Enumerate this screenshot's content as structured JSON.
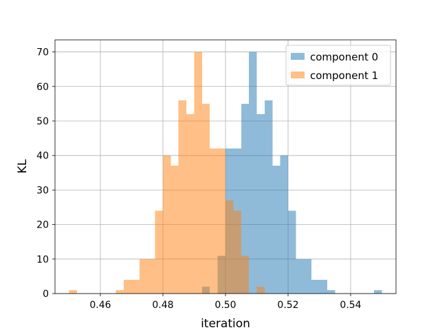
{
  "chart_data": {
    "type": "histogram",
    "xlabel": "iteration",
    "ylabel": "KL",
    "xlim": [
      0.4455,
      0.5545
    ],
    "ylim": [
      0,
      73.5
    ],
    "bin_width": 0.0025,
    "grid": true,
    "legend_position": "top-right",
    "x_ticks": [
      0.46,
      0.48,
      0.5,
      0.52,
      0.54
    ],
    "x_tick_labels": [
      "0.46",
      "0.48",
      "0.50",
      "0.52",
      "0.54"
    ],
    "y_ticks": [
      0,
      10,
      20,
      30,
      40,
      50,
      60,
      70
    ],
    "y_tick_labels": [
      "0",
      "10",
      "20",
      "30",
      "40",
      "50",
      "60",
      "70"
    ],
    "series": [
      {
        "name": "component 0",
        "color": "#1f77b4",
        "alpha": 0.5,
        "bins": [
          [
            0.4925,
            0.495,
            2
          ],
          [
            0.495,
            0.4975,
            0
          ],
          [
            0.4975,
            0.5,
            11
          ],
          [
            0.5,
            0.5025,
            42
          ],
          [
            0.5025,
            0.505,
            42
          ],
          [
            0.505,
            0.5075,
            55
          ],
          [
            0.5075,
            0.51,
            70
          ],
          [
            0.51,
            0.5125,
            52
          ],
          [
            0.5125,
            0.515,
            56
          ],
          [
            0.515,
            0.5175,
            37
          ],
          [
            0.5175,
            0.52,
            40
          ],
          [
            0.52,
            0.5225,
            24
          ],
          [
            0.5225,
            0.525,
            10
          ],
          [
            0.525,
            0.5275,
            10
          ],
          [
            0.5275,
            0.53,
            4
          ],
          [
            0.53,
            0.5325,
            4
          ],
          [
            0.5325,
            0.535,
            1
          ],
          [
            0.535,
            0.5375,
            0
          ],
          [
            0.5375,
            0.54,
            0
          ],
          [
            0.54,
            0.5425,
            0
          ],
          [
            0.5425,
            0.545,
            0
          ],
          [
            0.5475,
            0.55,
            1
          ]
        ]
      },
      {
        "name": "component 1",
        "color": "#ff7f0e",
        "alpha": 0.5,
        "bins": [
          [
            0.45,
            0.4525,
            1
          ],
          [
            0.465,
            0.4675,
            1
          ],
          [
            0.4675,
            0.47,
            4
          ],
          [
            0.47,
            0.4725,
            4
          ],
          [
            0.4725,
            0.475,
            10
          ],
          [
            0.475,
            0.4775,
            10
          ],
          [
            0.4775,
            0.48,
            24
          ],
          [
            0.48,
            0.4825,
            40
          ],
          [
            0.4825,
            0.485,
            37
          ],
          [
            0.485,
            0.4875,
            56
          ],
          [
            0.4875,
            0.49,
            52
          ],
          [
            0.49,
            0.4925,
            70
          ],
          [
            0.4925,
            0.495,
            55
          ],
          [
            0.495,
            0.4975,
            42
          ],
          [
            0.4975,
            0.5,
            42
          ],
          [
            0.5,
            0.5025,
            27
          ],
          [
            0.5025,
            0.505,
            24
          ],
          [
            0.505,
            0.5075,
            11
          ],
          [
            0.5075,
            0.51,
            0
          ],
          [
            0.51,
            0.5125,
            2
          ]
        ]
      }
    ]
  }
}
